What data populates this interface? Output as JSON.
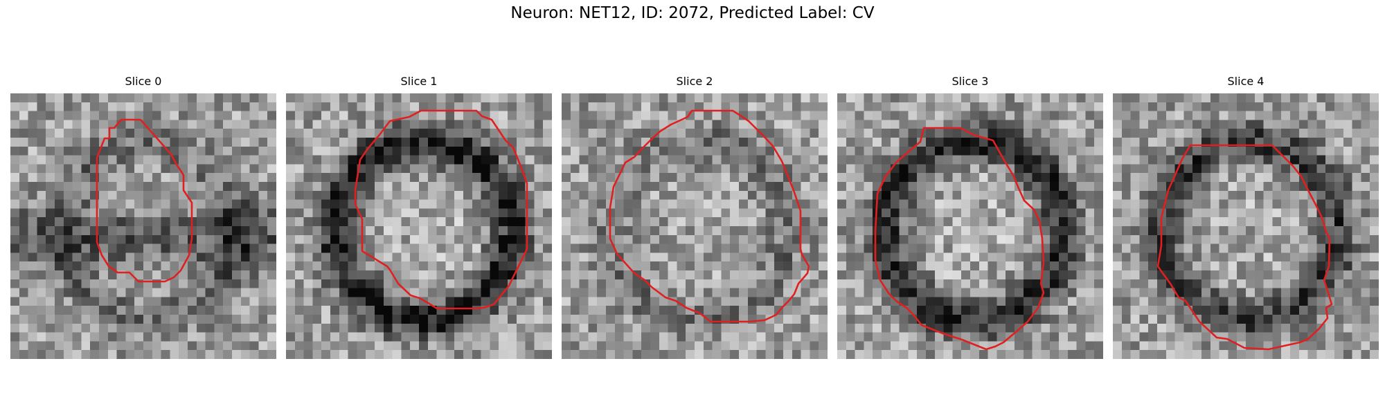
{
  "figure": {
    "title": "Neuron: NET12, ID: 2072, Predicted Label: CV"
  },
  "outline_color": "#e02020",
  "panels": [
    {
      "title": "Slice 0",
      "seed": 11,
      "ring_strength": 0.35,
      "band_dark": 0.55
    },
    {
      "title": "Slice 1",
      "seed": 23,
      "ring_strength": 0.9,
      "band_dark": 0.0
    },
    {
      "title": "Slice 2",
      "seed": 37,
      "ring_strength": 0.3,
      "band_dark": 0.0
    },
    {
      "title": "Slice 3",
      "seed": 41,
      "ring_strength": 0.85,
      "band_dark": 0.0
    },
    {
      "title": "Slice 4",
      "seed": 53,
      "ring_strength": 0.7,
      "band_dark": 0.0
    }
  ]
}
